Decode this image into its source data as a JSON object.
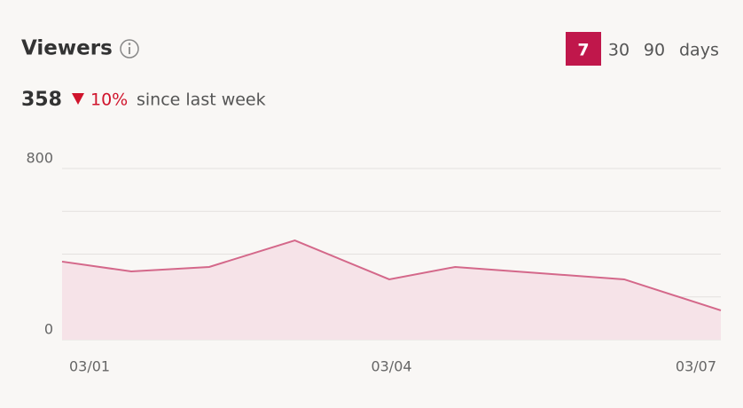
{
  "chart_data": {
    "type": "area",
    "title": "Viewers",
    "summary": {
      "value": 358,
      "change": "10%",
      "change_text": "since last week"
    },
    "range_options": [
      "7",
      "30",
      "90"
    ],
    "range_unit": "days",
    "selected_range": 0,
    "x": [
      1,
      1.63,
      2.34,
      3.12,
      3.98,
      4.58,
      6.12,
      7
    ],
    "values": [
      365,
      319,
      340,
      464,
      282,
      340,
      282,
      137
    ],
    "color": "#d4688a",
    "fill_color": "#f6e3e8",
    "xlim": [
      1,
      7
    ],
    "xticks": [
      {
        "value": 1,
        "label": "03/01"
      },
      {
        "value": 4,
        "label": "03/04"
      },
      {
        "value": 7,
        "label": "03/07"
      }
    ],
    "ylim": [
      0,
      800
    ],
    "yticks": [
      0,
      800
    ],
    "gridlines": [
      0,
      200,
      400,
      600,
      800
    ],
    "grid": true
  }
}
